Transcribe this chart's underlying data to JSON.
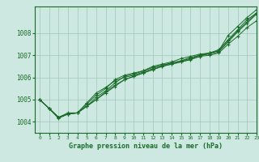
{
  "title": "Graphe pression niveau de la mer (hPa)",
  "background_color": "#cce8e0",
  "grid_color": "#a0c8b8",
  "line_color": "#1a6b2a",
  "xlim": [
    -0.5,
    23
  ],
  "ylim": [
    1003.5,
    1009.2
  ],
  "yticks": [
    1004,
    1005,
    1006,
    1007,
    1008
  ],
  "xticks": [
    0,
    1,
    2,
    3,
    4,
    5,
    6,
    7,
    8,
    9,
    10,
    11,
    12,
    13,
    14,
    15,
    16,
    17,
    18,
    19,
    20,
    21,
    22,
    23
  ],
  "series": [
    [
      1005.0,
      1004.6,
      1004.2,
      1004.4,
      1004.4,
      1004.8,
      1005.2,
      1005.5,
      1005.9,
      1006.1,
      1006.2,
      1006.3,
      1006.5,
      1006.6,
      1006.7,
      1006.85,
      1006.95,
      1007.05,
      1007.1,
      1007.2,
      1007.9,
      1008.3,
      1008.7,
      1009.05
    ],
    [
      1005.0,
      1004.6,
      1004.2,
      1004.35,
      1004.4,
      1004.7,
      1005.0,
      1005.3,
      1005.6,
      1005.9,
      1006.05,
      1006.2,
      1006.35,
      1006.5,
      1006.6,
      1006.7,
      1006.8,
      1006.95,
      1007.0,
      1007.1,
      1007.5,
      1007.85,
      1008.25,
      1008.55
    ],
    [
      1005.0,
      1004.6,
      1004.2,
      1004.35,
      1004.4,
      1004.7,
      1005.1,
      1005.4,
      1005.75,
      1006.05,
      1006.15,
      1006.3,
      1006.45,
      1006.55,
      1006.65,
      1006.75,
      1006.85,
      1007.0,
      1007.05,
      1007.15,
      1007.6,
      1008.05,
      1008.45,
      1008.85
    ],
    [
      1005.0,
      1004.6,
      1004.2,
      1004.35,
      1004.4,
      1004.7,
      1005.0,
      1005.35,
      1005.65,
      1005.9,
      1006.05,
      1006.2,
      1006.35,
      1006.5,
      1006.6,
      1006.7,
      1006.82,
      1006.95,
      1007.1,
      1007.25,
      1007.7,
      1008.15,
      1008.6,
      1008.9
    ],
    [
      1005.0,
      1004.6,
      1004.15,
      1004.35,
      1004.4,
      1004.85,
      1005.3,
      1005.55,
      1005.85,
      1006.0,
      1006.1,
      1006.25,
      1006.4,
      1006.55,
      1006.65,
      1006.75,
      1006.9,
      1007.0,
      1007.1,
      1007.2,
      1007.65,
      1008.1,
      1008.5,
      1008.9
    ]
  ]
}
